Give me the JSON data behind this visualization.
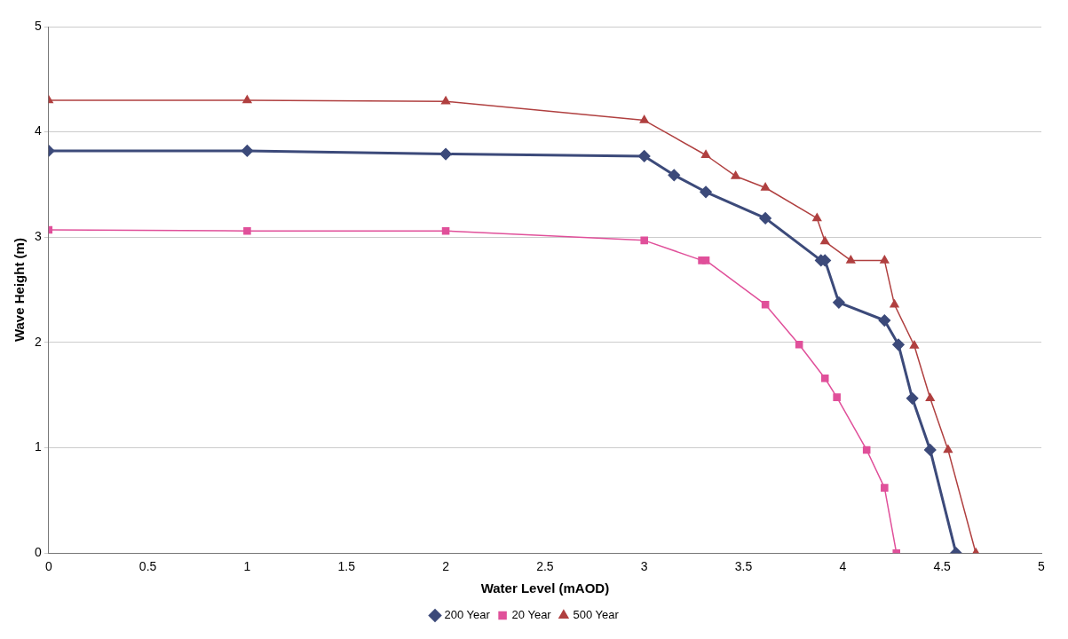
{
  "chart_data": {
    "type": "line",
    "xlabel": "Water Level (mAOD)",
    "ylabel": "Wave Height (m)",
    "xlim": [
      0,
      5
    ],
    "xticks": [
      0,
      0.5,
      1,
      1.5,
      2,
      2.5,
      3,
      3.5,
      4,
      4.5,
      5
    ],
    "ylim": [
      0,
      5
    ],
    "yticks": [
      0,
      1,
      2,
      3,
      4,
      5
    ],
    "grid": "y",
    "legend": "bottom",
    "series": [
      {
        "name": "200 Year",
        "color": "#3c4a7a",
        "marker": "diamond",
        "x": [
          0,
          1,
          2,
          3,
          3.15,
          3.31,
          3.61,
          3.89,
          3.91,
          3.98,
          4.21,
          4.28,
          4.35,
          4.44,
          4.57
        ],
        "values": [
          3.82,
          3.82,
          3.79,
          3.77,
          3.59,
          3.43,
          3.18,
          2.78,
          2.78,
          2.38,
          2.21,
          1.98,
          1.47,
          0.98,
          0
        ]
      },
      {
        "name": "20 Year",
        "color": "#e0509a",
        "marker": "square",
        "x": [
          0,
          1,
          2,
          3,
          3.29,
          3.31,
          3.61,
          3.78,
          3.91,
          3.97,
          4.12,
          4.21,
          4.27
        ],
        "values": [
          3.07,
          3.06,
          3.06,
          2.97,
          2.78,
          2.78,
          2.36,
          1.98,
          1.66,
          1.48,
          0.98,
          0.62,
          0
        ]
      },
      {
        "name": "500 Year",
        "color": "#b04040",
        "marker": "triangle",
        "x": [
          0,
          1,
          2,
          3,
          3.31,
          3.46,
          3.61,
          3.87,
          3.91,
          4.04,
          4.21,
          4.26,
          4.36,
          4.44,
          4.53,
          4.67
        ],
        "values": [
          4.3,
          4.3,
          4.29,
          4.11,
          3.78,
          3.58,
          3.47,
          3.18,
          2.96,
          2.78,
          2.78,
          2.36,
          1.97,
          1.47,
          0.98,
          0
        ]
      }
    ]
  }
}
